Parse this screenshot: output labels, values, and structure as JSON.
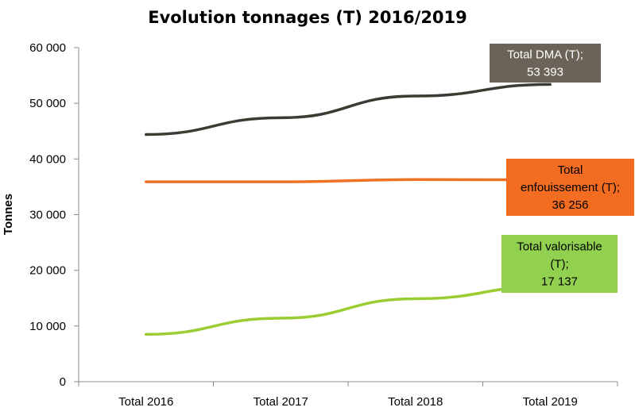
{
  "chart_data": {
    "type": "line",
    "title": "Evolution tonnages (T) 2016/2019",
    "xlabel": "",
    "ylabel": "Tonnes",
    "categories": [
      "Total 2016",
      "Total 2017",
      "Total 2018",
      "Total 2019"
    ],
    "y_ticks": [
      "0",
      "10 000",
      "20 000",
      "30 000",
      "40 000",
      "50 000",
      "60 000"
    ],
    "ylim": [
      0,
      60000
    ],
    "grid": false,
    "legend": "none",
    "series": [
      {
        "name": "Total DMA (T)",
        "values": [
          44400,
          47400,
          51300,
          53393
        ],
        "color": "#3b3a33",
        "label_lines": [
          "Total DMA (T);",
          "53 393"
        ],
        "label_bg": "#6b6358"
      },
      {
        "name": "Total enfouissement (T)",
        "values": [
          35900,
          35900,
          36300,
          36256
        ],
        "color": "#f07024",
        "label_lines": [
          "Total",
          "enfouissement (T);",
          "36 256"
        ],
        "label_bg": "#f26d21"
      },
      {
        "name": "Total valorisable (T)",
        "values": [
          8500,
          11400,
          14900,
          17137
        ],
        "color": "#9acd32",
        "label_lines": [
          "Total valorisable",
          "(T);",
          "17 137"
        ],
        "label_bg": "#92d050"
      }
    ]
  }
}
